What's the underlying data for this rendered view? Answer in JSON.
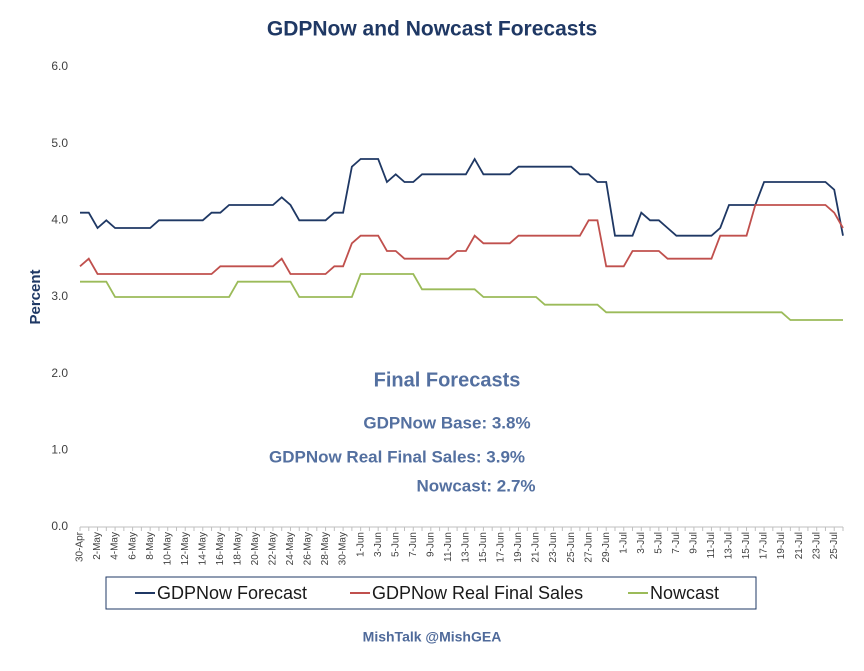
{
  "chart_data": {
    "type": "line",
    "title": "GDPNow and Nowcast Forecasts",
    "ylabel": "Percent",
    "categories": [
      "30-Apr",
      null,
      "2-May",
      null,
      "4-May",
      null,
      "6-May",
      null,
      "8-May",
      null,
      "10-May",
      null,
      "12-May",
      null,
      "14-May",
      null,
      "16-May",
      null,
      "18-May",
      null,
      "20-May",
      null,
      "22-May",
      null,
      "24-May",
      null,
      "26-May",
      null,
      "28-May",
      null,
      "30-May",
      null,
      "1-Jun",
      null,
      "3-Jun",
      null,
      "5-Jun",
      null,
      "7-Jun",
      null,
      "9-Jun",
      null,
      "11-Jun",
      null,
      "13-Jun",
      null,
      "15-Jun",
      null,
      "17-Jun",
      null,
      "19-Jun",
      null,
      "21-Jun",
      null,
      "23-Jun",
      null,
      "25-Jun",
      null,
      "27-Jun",
      null,
      "29-Jun",
      null,
      "1-Jul",
      null,
      "3-Jul",
      null,
      "5-Jul",
      null,
      "7-Jul",
      null,
      "9-Jul",
      null,
      "11-Jul",
      null,
      "13-Jul",
      null,
      "15-Jul",
      null,
      "17-Jul",
      null,
      "19-Jul",
      null,
      "21-Jul",
      null,
      "23-Jul",
      null,
      "25-Jul",
      null
    ],
    "series": [
      {
        "name": "GDPNow Forecast",
        "color": "#1f3864",
        "values": [
          4.1,
          4.1,
          3.9,
          4.0,
          3.9,
          3.9,
          3.9,
          3.9,
          3.9,
          4.0,
          4.0,
          4.0,
          4.0,
          4.0,
          4.0,
          4.1,
          4.1,
          4.2,
          4.2,
          4.2,
          4.2,
          4.2,
          4.2,
          4.3,
          4.2,
          4.0,
          4.0,
          4.0,
          4.0,
          4.1,
          4.1,
          4.7,
          4.8,
          4.8,
          4.8,
          4.5,
          4.6,
          4.5,
          4.5,
          4.6,
          4.6,
          4.6,
          4.6,
          4.6,
          4.6,
          4.8,
          4.6,
          4.6,
          4.6,
          4.6,
          4.7,
          4.7,
          4.7,
          4.7,
          4.7,
          4.7,
          4.7,
          4.6,
          4.6,
          4.5,
          4.5,
          3.8,
          3.8,
          3.8,
          4.1,
          4.0,
          4.0,
          3.9,
          3.8,
          3.8,
          3.8,
          3.8,
          3.8,
          3.9,
          4.2,
          4.2,
          4.2,
          4.2,
          4.5,
          4.5,
          4.5,
          4.5,
          4.5,
          4.5,
          4.5,
          4.5,
          4.4,
          3.8
        ]
      },
      {
        "name": "GDPNow Real Final Sales",
        "color": "#c0504d",
        "values": [
          3.4,
          3.5,
          3.3,
          3.3,
          3.3,
          3.3,
          3.3,
          3.3,
          3.3,
          3.3,
          3.3,
          3.3,
          3.3,
          3.3,
          3.3,
          3.3,
          3.4,
          3.4,
          3.4,
          3.4,
          3.4,
          3.4,
          3.4,
          3.5,
          3.3,
          3.3,
          3.3,
          3.3,
          3.3,
          3.4,
          3.4,
          3.7,
          3.8,
          3.8,
          3.8,
          3.6,
          3.6,
          3.5,
          3.5,
          3.5,
          3.5,
          3.5,
          3.5,
          3.6,
          3.6,
          3.8,
          3.7,
          3.7,
          3.7,
          3.7,
          3.8,
          3.8,
          3.8,
          3.8,
          3.8,
          3.8,
          3.8,
          3.8,
          4.0,
          4.0,
          3.4,
          3.4,
          3.4,
          3.6,
          3.6,
          3.6,
          3.6,
          3.5,
          3.5,
          3.5,
          3.5,
          3.5,
          3.5,
          3.8,
          3.8,
          3.8,
          3.8,
          4.2,
          4.2,
          4.2,
          4.2,
          4.2,
          4.2,
          4.2,
          4.2,
          4.2,
          4.1,
          3.9
        ]
      },
      {
        "name": "Nowcast",
        "color": "#9bbb59",
        "values": [
          3.2,
          3.2,
          3.2,
          3.2,
          3.0,
          3.0,
          3.0,
          3.0,
          3.0,
          3.0,
          3.0,
          3.0,
          3.0,
          3.0,
          3.0,
          3.0,
          3.0,
          3.0,
          3.2,
          3.2,
          3.2,
          3.2,
          3.2,
          3.2,
          3.2,
          3.0,
          3.0,
          3.0,
          3.0,
          3.0,
          3.0,
          3.0,
          3.3,
          3.3,
          3.3,
          3.3,
          3.3,
          3.3,
          3.3,
          3.1,
          3.1,
          3.1,
          3.1,
          3.1,
          3.1,
          3.1,
          3.0,
          3.0,
          3.0,
          3.0,
          3.0,
          3.0,
          3.0,
          2.9,
          2.9,
          2.9,
          2.9,
          2.9,
          2.9,
          2.9,
          2.8,
          2.8,
          2.8,
          2.8,
          2.8,
          2.8,
          2.8,
          2.8,
          2.8,
          2.8,
          2.8,
          2.8,
          2.8,
          2.8,
          2.8,
          2.8,
          2.8,
          2.8,
          2.8,
          2.8,
          2.8,
          2.7,
          2.7,
          2.7,
          2.7,
          2.7,
          2.7,
          2.7
        ]
      }
    ],
    "ylim": [
      0,
      6
    ],
    "yticks": [
      {
        "value": 0,
        "label": "0.0"
      },
      {
        "value": 1,
        "label": "1.0"
      },
      {
        "value": 2,
        "label": "2.0"
      },
      {
        "value": 3,
        "label": "3.0"
      },
      {
        "value": 4,
        "label": "4.0"
      },
      {
        "value": 5,
        "label": "5.0"
      },
      {
        "value": 6,
        "label": "6.0"
      }
    ],
    "grid": false,
    "legend": "bottom",
    "annotations": [
      "Final Forecasts",
      "GDPNow Base: 3.8%",
      "GDPNow Real Final Sales: 3.9%",
      "Nowcast: 2.7%"
    ],
    "footer": "MishTalk @MishGEA"
  }
}
